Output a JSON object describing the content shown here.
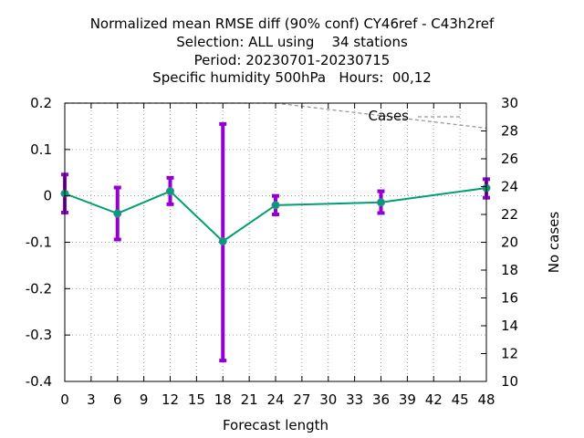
{
  "chart_data": {
    "type": "line",
    "title_lines": [
      "Normalized mean RMSE diff (90% conf) CY46ref - C43h2ref",
      "Selection: ALL using    34 stations",
      "Period: 20230701-20230715",
      "Specific humidity 500hPa   Hours:  00,12"
    ],
    "xlabel": "Forecast length",
    "ylabel": "",
    "y2label": "No cases",
    "xlim": [
      0,
      48
    ],
    "ylim": [
      -0.4,
      0.2
    ],
    "y2lim": [
      10,
      30
    ],
    "x_ticks": [
      0,
      3,
      6,
      9,
      12,
      15,
      18,
      21,
      24,
      27,
      30,
      33,
      36,
      39,
      42,
      45,
      48
    ],
    "y_ticks": [
      -0.4,
      -0.3,
      -0.2,
      -0.1,
      0,
      0.1,
      0.2
    ],
    "y_tick_labels": [
      "-0.4",
      "-0.3",
      "-0.2",
      "-0.1",
      "0",
      "0.1",
      "0.2"
    ],
    "y2_ticks": [
      10,
      12,
      14,
      16,
      18,
      20,
      22,
      24,
      26,
      28,
      30
    ],
    "grid": true,
    "legend_position": "top-right",
    "series": [
      {
        "color": "#009e73",
        "x": [
          0,
          6,
          12,
          18,
          24,
          36,
          48
        ],
        "y": [
          0.005,
          -0.038,
          0.01,
          -0.098,
          -0.02,
          -0.014,
          0.017
        ],
        "error_low": [
          -0.036,
          -0.094,
          -0.018,
          -0.355,
          -0.04,
          -0.037,
          -0.004
        ],
        "error_high": [
          0.046,
          0.018,
          0.039,
          0.155,
          0.0,
          0.01,
          0.036
        ],
        "error_color": "#9400d3"
      },
      {
        "name": "Cases",
        "axis": "y2",
        "color": "#999999",
        "dashed": true,
        "x": [
          0,
          24,
          48
        ],
        "y": [
          30,
          30,
          28.2
        ]
      }
    ]
  }
}
